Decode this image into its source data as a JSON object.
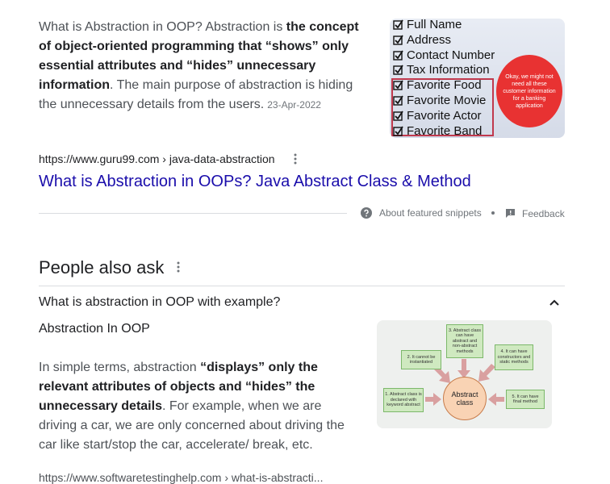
{
  "snippet": {
    "text": [
      {
        "text": "What is Abstraction in OOP? Abstraction is ",
        "bold": false
      },
      {
        "text": "the concept of object-oriented programming that “shows” only essential attributes and “hides” unnecessary information",
        "bold": true
      },
      {
        "text": ". The main purpose of abstraction is hiding the unnecessary details from the users.",
        "bold": false
      }
    ],
    "date": "23-Apr-2022",
    "image": {
      "items": [
        "Full Name",
        "Address",
        "Contact Number",
        "Tax Information",
        "Favorite Food",
        "Favorite Movie",
        "Favorite Actor",
        "Favorite Band"
      ],
      "bubble": "Okay, we might not need all these customer information for a banking application"
    },
    "source": "https://www.guru99.com › java-data-abstraction",
    "title": "What is Abstraction in OOPs? Java Abstract Class & Method",
    "about": "About featured snippets",
    "feedback": "Feedback"
  },
  "paa": {
    "heading": "People also ask",
    "question": "What is abstraction in OOP with example?",
    "answer": {
      "title": "Abstraction In OOP",
      "text": [
        {
          "text": "In simple terms, abstraction ",
          "bold": false
        },
        {
          "text": "“displays” only the relevant attributes of objects and “hides” the unnecessary details",
          "bold": true
        },
        {
          "text": ". For example, when we are driving a car, we are only concerned about driving the car like start/stop the car, accelerate/ break, etc.",
          "bold": false
        }
      ],
      "diagram": {
        "center": "Abstract class",
        "nodes": [
          "3. Abstract class can have abstract and non-abstract methods",
          "2. It cannot be instantiated",
          "4. It can have constructors and static methods",
          "1. Abstract class is declared with keyword abstract",
          "5. It can have final method"
        ]
      },
      "source": "https://www.softwaretestinghelp.com › what-is-abstracti..."
    }
  }
}
